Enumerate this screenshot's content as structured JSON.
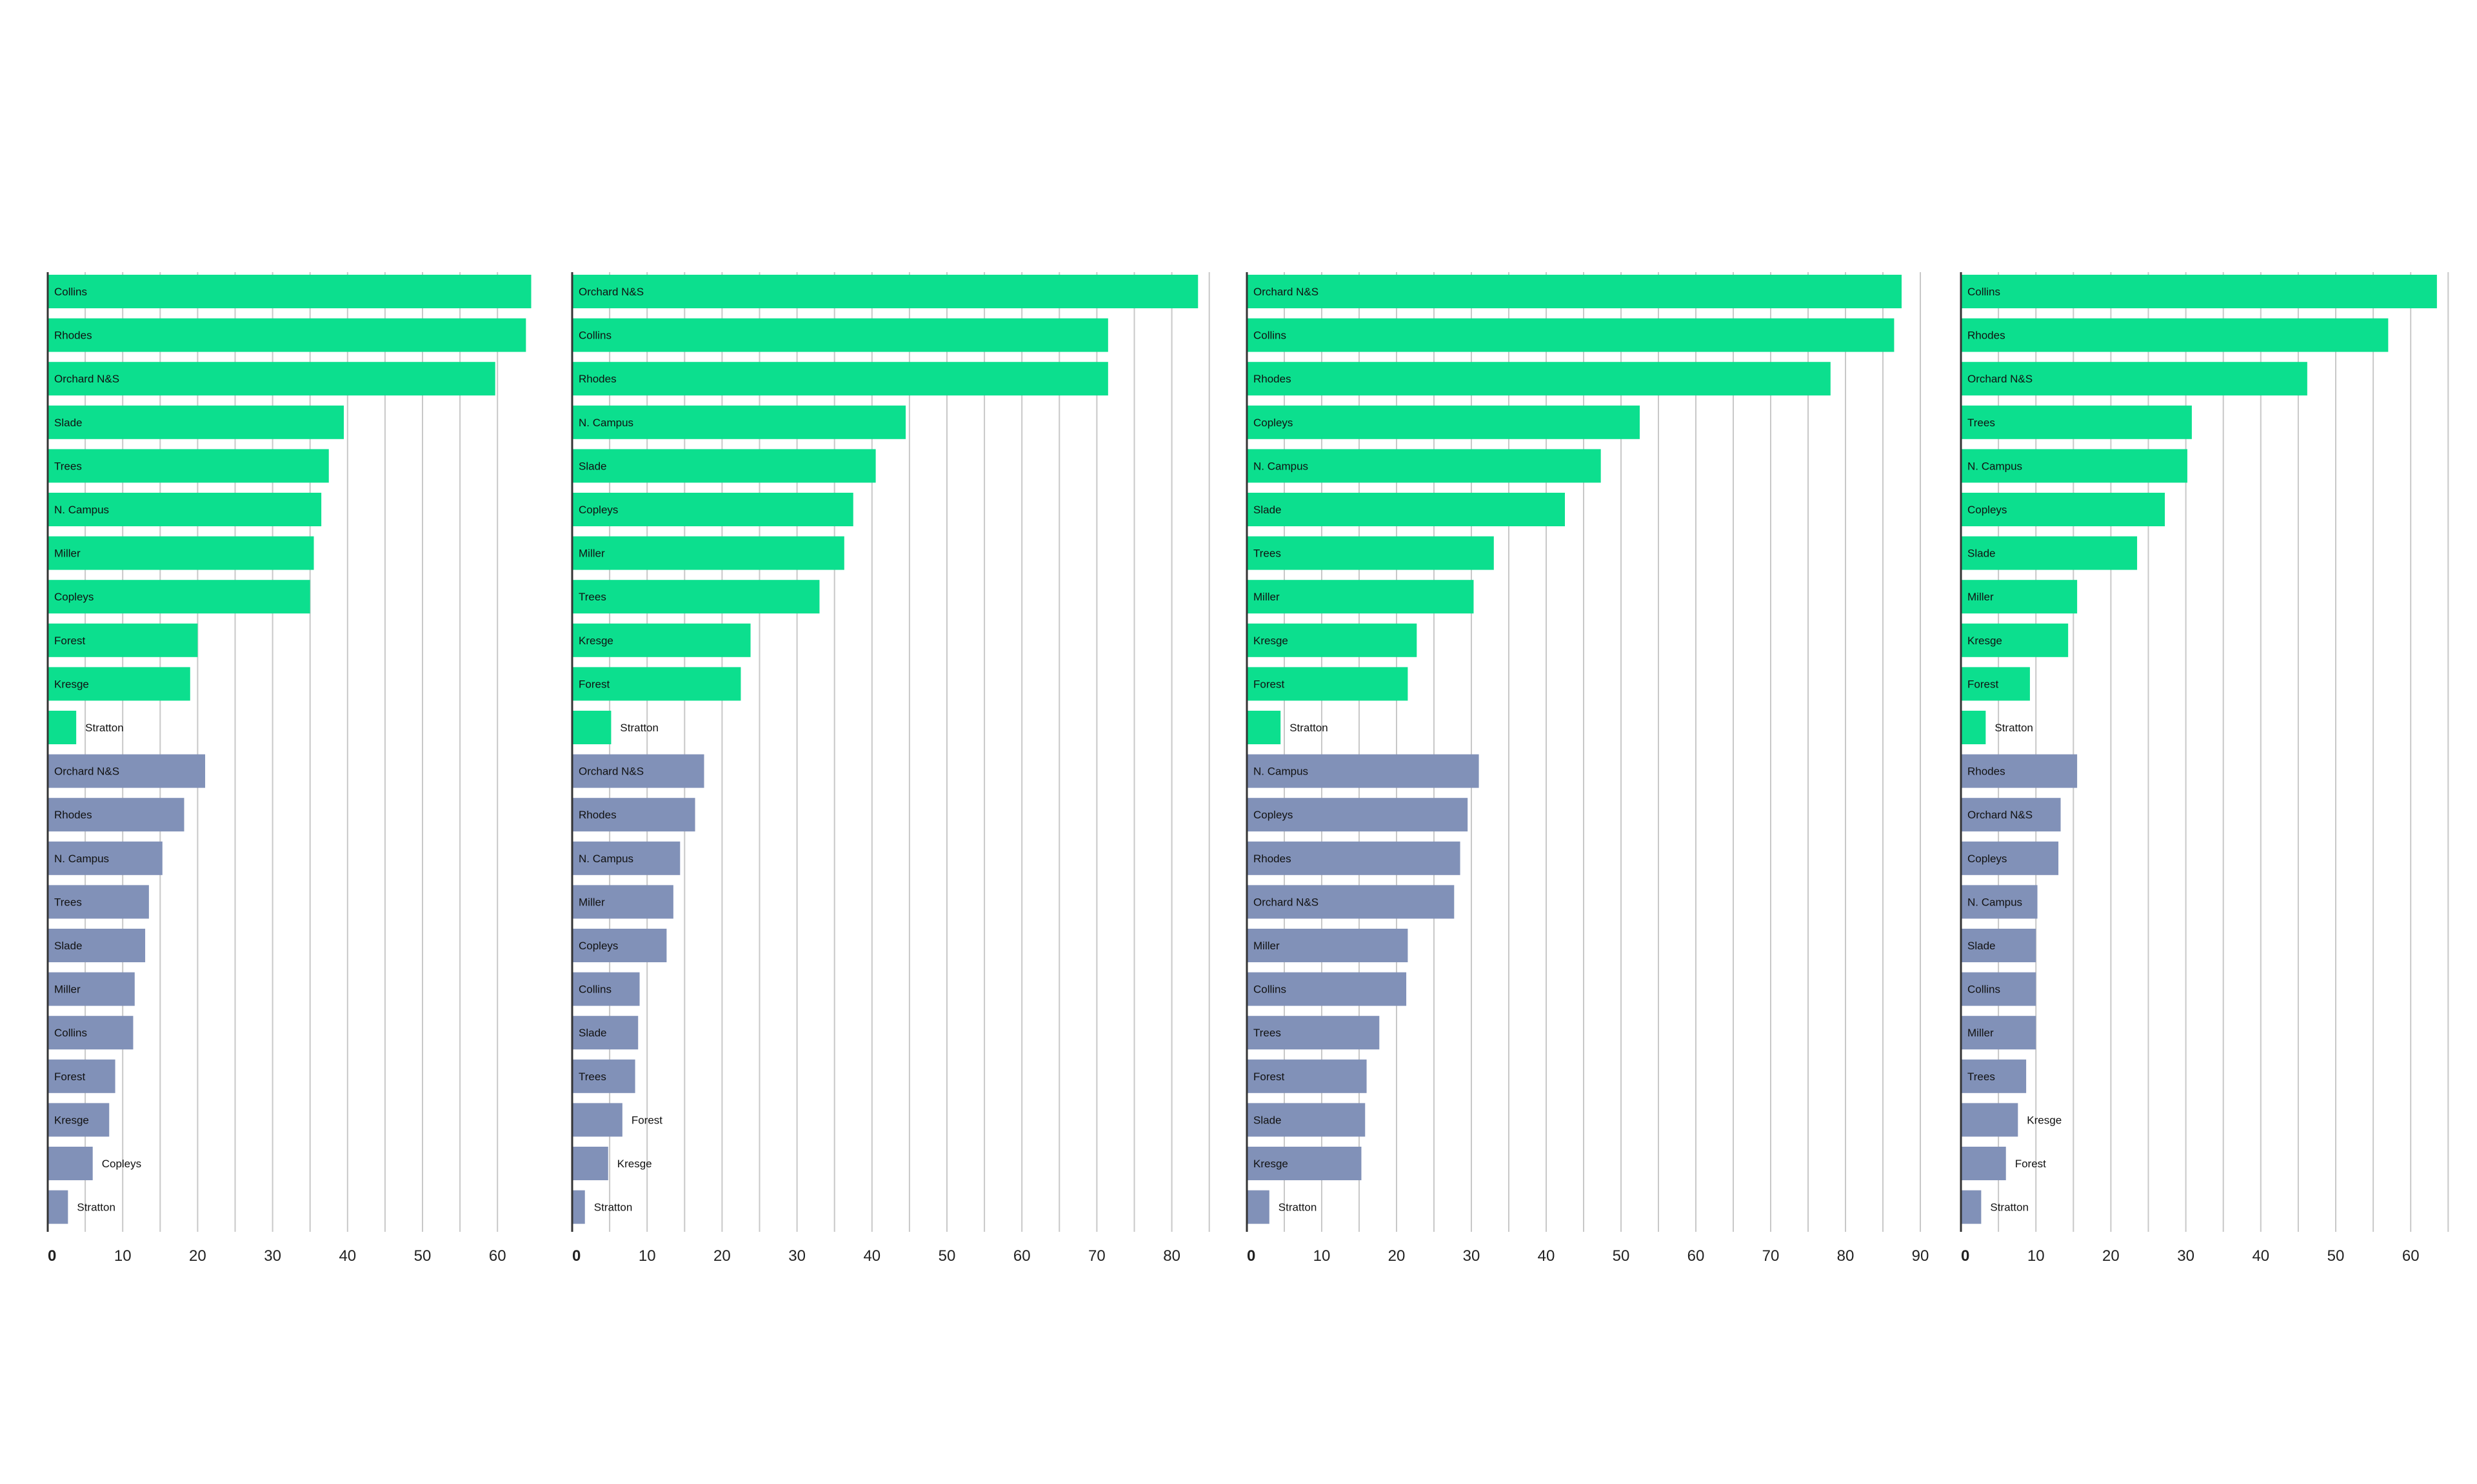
{
  "colors": {
    "top": "#0cdf8e",
    "bottom": "#8191b8",
    "grid": "#c8c8c8",
    "axis": "#333333"
  },
  "chart_data": [
    {
      "type": "bar",
      "orientation": "horizontal",
      "xlim": [
        0,
        65
      ],
      "ticks": [
        0,
        10,
        20,
        30,
        40,
        50,
        60
      ],
      "series": [
        {
          "color": "#0cdf8e",
          "bars": [
            {
              "label": "Collins",
              "value": 64.5
            },
            {
              "label": "Rhodes",
              "value": 63.8
            },
            {
              "label": "Orchard N&S",
              "value": 59.7
            },
            {
              "label": "Slade",
              "value": 39.5
            },
            {
              "label": "Trees",
              "value": 37.5
            },
            {
              "label": "N. Campus",
              "value": 36.5
            },
            {
              "label": "Miller",
              "value": 35.5
            },
            {
              "label": "Copleys",
              "value": 35.0
            },
            {
              "label": "Forest",
              "value": 20.0
            },
            {
              "label": "Kresge",
              "value": 19.0
            },
            {
              "label": "Stratton",
              "value": 3.8
            }
          ]
        },
        {
          "color": "#8191b8",
          "bars": [
            {
              "label": "Orchard N&S",
              "value": 21.0
            },
            {
              "label": "Rhodes",
              "value": 18.2
            },
            {
              "label": "N. Campus",
              "value": 15.3
            },
            {
              "label": "Trees",
              "value": 13.5
            },
            {
              "label": "Slade",
              "value": 13.0
            },
            {
              "label": "Miller",
              "value": 11.6
            },
            {
              "label": "Collins",
              "value": 11.4
            },
            {
              "label": "Forest",
              "value": 9.0
            },
            {
              "label": "Kresge",
              "value": 8.2
            },
            {
              "label": "Copleys",
              "value": 6.0
            },
            {
              "label": "Stratton",
              "value": 2.7
            }
          ]
        }
      ]
    },
    {
      "type": "bar",
      "orientation": "horizontal",
      "xlim": [
        0,
        85
      ],
      "ticks": [
        0,
        10,
        20,
        30,
        40,
        50,
        60,
        70,
        80
      ],
      "series": [
        {
          "color": "#0cdf8e",
          "bars": [
            {
              "label": "Orchard N&S",
              "value": 83.5
            },
            {
              "label": "Collins",
              "value": 71.5
            },
            {
              "label": "Rhodes",
              "value": 71.5
            },
            {
              "label": "N. Campus",
              "value": 44.5
            },
            {
              "label": "Slade",
              "value": 40.5
            },
            {
              "label": "Copleys",
              "value": 37.5
            },
            {
              "label": "Miller",
              "value": 36.3
            },
            {
              "label": "Trees",
              "value": 33.0
            },
            {
              "label": "Kresge",
              "value": 23.8
            },
            {
              "label": "Forest",
              "value": 22.5
            },
            {
              "label": "Stratton",
              "value": 5.2
            }
          ]
        },
        {
          "color": "#8191b8",
          "bars": [
            {
              "label": "Orchard N&S",
              "value": 17.6
            },
            {
              "label": "Rhodes",
              "value": 16.4
            },
            {
              "label": "N. Campus",
              "value": 14.4
            },
            {
              "label": "Miller",
              "value": 13.5
            },
            {
              "label": "Copleys",
              "value": 12.6
            },
            {
              "label": "Collins",
              "value": 9.0
            },
            {
              "label": "Slade",
              "value": 8.8
            },
            {
              "label": "Trees",
              "value": 8.4
            },
            {
              "label": "Forest",
              "value": 6.7
            },
            {
              "label": "Kresge",
              "value": 4.8
            },
            {
              "label": "Stratton",
              "value": 1.7
            }
          ]
        }
      ]
    },
    {
      "type": "bar",
      "orientation": "horizontal",
      "xlim": [
        0,
        90
      ],
      "ticks": [
        0,
        10,
        20,
        30,
        40,
        50,
        60,
        70,
        80,
        90
      ],
      "series": [
        {
          "color": "#0cdf8e",
          "bars": [
            {
              "label": "Orchard N&S",
              "value": 87.5
            },
            {
              "label": "Collins",
              "value": 86.5
            },
            {
              "label": "Rhodes",
              "value": 78.0
            },
            {
              "label": "Copleys",
              "value": 52.5
            },
            {
              "label": "N. Campus",
              "value": 47.3
            },
            {
              "label": "Slade",
              "value": 42.5
            },
            {
              "label": "Trees",
              "value": 33.0
            },
            {
              "label": "Miller",
              "value": 30.3
            },
            {
              "label": "Kresge",
              "value": 22.7
            },
            {
              "label": "Forest",
              "value": 21.5
            },
            {
              "label": "Stratton",
              "value": 4.5
            }
          ]
        },
        {
          "color": "#8191b8",
          "bars": [
            {
              "label": "N. Campus",
              "value": 31.0
            },
            {
              "label": "Copleys",
              "value": 29.5
            },
            {
              "label": "Rhodes",
              "value": 28.5
            },
            {
              "label": "Orchard N&S",
              "value": 27.7
            },
            {
              "label": "Miller",
              "value": 21.5
            },
            {
              "label": "Collins",
              "value": 21.3
            },
            {
              "label": "Trees",
              "value": 17.7
            },
            {
              "label": "Forest",
              "value": 16.0
            },
            {
              "label": "Slade",
              "value": 15.8
            },
            {
              "label": "Kresge",
              "value": 15.3
            },
            {
              "label": "Stratton",
              "value": 3.0
            }
          ]
        }
      ]
    },
    {
      "type": "bar",
      "orientation": "horizontal",
      "xlim": [
        0,
        65
      ],
      "ticks": [
        0,
        10,
        20,
        30,
        40,
        50,
        60
      ],
      "series": [
        {
          "color": "#0cdf8e",
          "bars": [
            {
              "label": "Collins",
              "value": 63.5
            },
            {
              "label": "Rhodes",
              "value": 57.0
            },
            {
              "label": "Orchard N&S",
              "value": 46.2
            },
            {
              "label": "Trees",
              "value": 30.8
            },
            {
              "label": "N. Campus",
              "value": 30.2
            },
            {
              "label": "Copleys",
              "value": 27.2
            },
            {
              "label": "Slade",
              "value": 23.5
            },
            {
              "label": "Miller",
              "value": 15.5
            },
            {
              "label": "Kresge",
              "value": 14.3
            },
            {
              "label": "Forest",
              "value": 9.2
            },
            {
              "label": "Stratton",
              "value": 3.3
            }
          ]
        },
        {
          "color": "#8191b8",
          "bars": [
            {
              "label": "Rhodes",
              "value": 15.5
            },
            {
              "label": "Orchard N&S",
              "value": 13.3
            },
            {
              "label": "Copleys",
              "value": 13.0
            },
            {
              "label": "N. Campus",
              "value": 10.2
            },
            {
              "label": "Slade",
              "value": 10.0
            },
            {
              "label": "Collins",
              "value": 10.0
            },
            {
              "label": "Miller",
              "value": 10.0
            },
            {
              "label": "Trees",
              "value": 8.7
            },
            {
              "label": "Kresge",
              "value": 7.6
            },
            {
              "label": "Forest",
              "value": 6.0
            },
            {
              "label": "Stratton",
              "value": 2.7
            }
          ]
        }
      ]
    }
  ]
}
